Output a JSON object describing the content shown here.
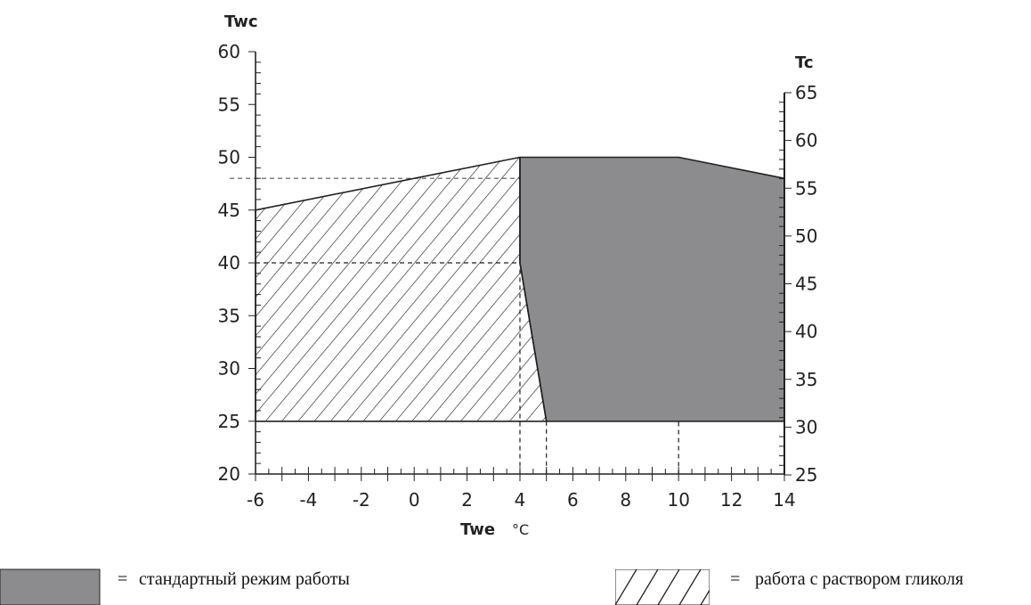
{
  "chart_data": {
    "type": "area",
    "xlabel": "Twe",
    "x_unit": "°C",
    "ylabel_left": "Twc",
    "ylabel_right": "Tc",
    "xlim": [
      -6,
      14
    ],
    "ylim_left": [
      20,
      60
    ],
    "ylim_right": [
      25,
      65
    ],
    "x_ticks": [
      -6,
      -4,
      -2,
      0,
      2,
      4,
      6,
      8,
      10,
      12,
      14
    ],
    "y_left_ticks": [
      20,
      25,
      30,
      35,
      40,
      45,
      50,
      55,
      60
    ],
    "y_right_ticks": [
      25,
      30,
      35,
      40,
      45,
      50,
      55,
      60,
      65
    ],
    "series": [
      {
        "name": "стандартный режим работы",
        "fill": "#8c8c8e",
        "pattern": "solid",
        "polygon": [
          [
            4,
            50
          ],
          [
            10,
            50
          ],
          [
            14,
            48
          ],
          [
            14,
            25
          ],
          [
            5,
            25
          ],
          [
            4,
            40
          ]
        ]
      },
      {
        "name": "работа с раствором гликоля",
        "fill": "none",
        "pattern": "hatch",
        "polygon": [
          [
            -6,
            45
          ],
          [
            4,
            50
          ],
          [
            4,
            40
          ],
          [
            5,
            25
          ],
          [
            -6,
            25
          ]
        ]
      }
    ],
    "reference_lines": {
      "horizontal_dashed_y": [
        48,
        40
      ],
      "vertical_dashed_x": [
        4,
        5,
        10
      ]
    },
    "legend": [
      {
        "label": "стандартный режим работы",
        "pattern": "solid"
      },
      {
        "label": "работа с раствором гликоля",
        "pattern": "hatch"
      }
    ],
    "legend_prefix": "="
  },
  "colors": {
    "standard_fill": "#8c8c8e",
    "line": "#222222",
    "dashed_light": "#999999"
  }
}
